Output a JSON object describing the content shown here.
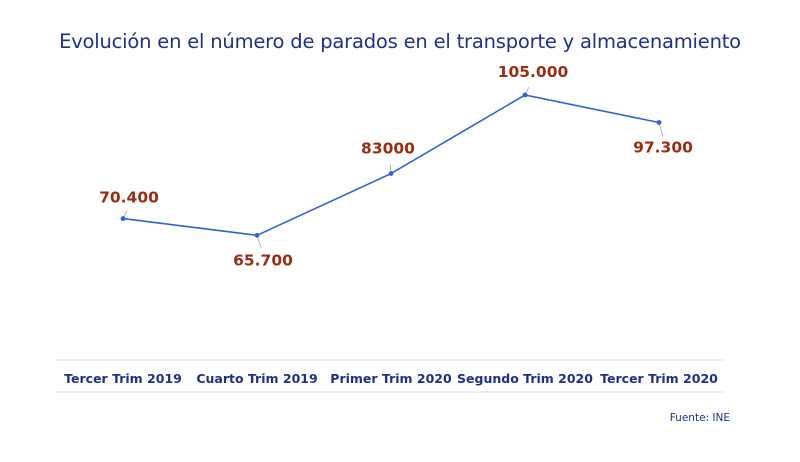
{
  "chart_data": {
    "type": "line",
    "title": "Evolución en el número de parados en el transporte y almacenamiento",
    "categories": [
      "Tercer Trim 2019",
      "Cuarto Trim 2019",
      "Primer Trim 2020",
      "Segundo Trim 2020",
      "Tercer Trim 2020"
    ],
    "values": [
      70400,
      65700,
      83000,
      105000,
      97300
    ],
    "data_labels": [
      "70.400",
      "65.700",
      "83000",
      "105.000",
      "97.300"
    ],
    "ylim": [
      0,
      110000
    ],
    "grid": false,
    "line_color": "#2f62d6",
    "label_color": "#9b2d12",
    "title_color": "#1f2f8c",
    "axis_text_color": "#1f2f8c"
  },
  "source_note": "Fuente: INE"
}
